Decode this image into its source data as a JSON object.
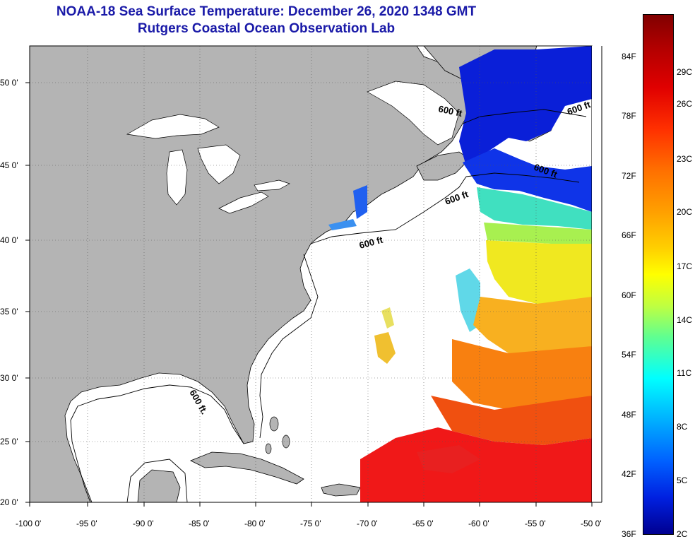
{
  "title_line1": "NOAA-18 Sea Surface Temperature:  December 26, 2020 1348 GMT",
  "title_line2": "Rutgers Coastal Ocean Observation Lab",
  "lat_labels": [
    "50 0'",
    "45 0'",
    "40 0'",
    "35 0'",
    "30 0'",
    "25 0'",
    "20 0'"
  ],
  "lon_labels": [
    "-100 0'",
    "-95 0'",
    "-90 0'",
    "-85 0'",
    "-80 0'",
    "-75 0'",
    "-70 0'",
    "-65 0'",
    "-60 0'",
    "-55 0'",
    "-50 0'"
  ],
  "contour_labels": [
    "600 ft",
    "600 ft",
    "600 ft",
    "600 ft.",
    "600 ft",
    "600 ft"
  ],
  "colorbar_f": [
    "84F",
    "78F",
    "72F",
    "66F",
    "60F",
    "54F",
    "48F",
    "42F",
    "36F"
  ],
  "colorbar_c": [
    "29C",
    "26C",
    "23C",
    "20C",
    "17C",
    "14C",
    "11C",
    "8C",
    "5C",
    "2C"
  ],
  "colors": {
    "land": "#b4b4b4",
    "ocean_nodata": "#ffffff",
    "title": "#1a1aa8"
  }
}
